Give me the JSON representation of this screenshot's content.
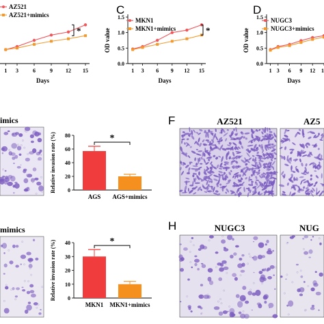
{
  "panels": {
    "C": "C",
    "D": "D",
    "F": "F",
    "H": "H"
  },
  "micrograph_titles": {
    "F_left": "AZ521",
    "F_right": "AZ5",
    "H_left": "NUGC3",
    "H_right": "NUG"
  },
  "left_fragments": {
    "top": "imics",
    "bottom": "mimics"
  },
  "colors": {
    "control": "#f0555a",
    "mimics": "#f29a2e",
    "bar_control": "#f03c3c",
    "bar_mimics": "#f5901e",
    "stain": "#7a5bbf",
    "stain_bg": "#e6e1f0"
  },
  "chart_data": [
    {
      "type": "line",
      "panel": "",
      "x": [
        1,
        3,
        6,
        9,
        12,
        15
      ],
      "xlabel": "Days",
      "ylabel": "",
      "series": [
        {
          "name": "AZ521",
          "values": [
            0.45,
            0.55,
            0.75,
            0.92,
            1.02,
            1.25
          ]
        },
        {
          "name": "AZ521+mimics",
          "values": [
            0.45,
            0.5,
            0.62,
            0.72,
            0.8,
            0.9
          ]
        }
      ],
      "annotation": "*"
    },
    {
      "type": "line",
      "panel": "C",
      "x": [
        1,
        3,
        6,
        9,
        12,
        15
      ],
      "xlabel": "Days",
      "ylabel": "OD value",
      "ylim": [
        0.0,
        1.5
      ],
      "yticks": [
        "0.0",
        "0.5",
        "1.0",
        "1.5"
      ],
      "series": [
        {
          "name": "MKN1",
          "values": [
            0.47,
            0.55,
            0.75,
            1.0,
            1.08,
            1.25
          ]
        },
        {
          "name": "MKN1+mimics",
          "values": [
            0.45,
            0.52,
            0.62,
            0.72,
            0.8,
            0.92
          ]
        }
      ],
      "annotation": "*"
    },
    {
      "type": "line",
      "panel": "D",
      "x": [
        1,
        3,
        6,
        9,
        12,
        15
      ],
      "xlabel": "Days",
      "ylabel": "OD value",
      "ylim": [
        0.0,
        1.5
      ],
      "yticks": [
        "0.0",
        "0.5",
        "1.0",
        "1.5"
      ],
      "series": [
        {
          "name": "NUGC3",
          "values": [
            0.45,
            0.55,
            0.62,
            0.74,
            0.84,
            0.9
          ]
        },
        {
          "name": "NUGC3+mimics",
          "values": [
            0.43,
            0.52,
            0.58,
            0.68,
            0.78,
            0.85
          ]
        }
      ]
    },
    {
      "type": "bar",
      "panel": "",
      "categories": [
        "AGS",
        "AGS+mimics"
      ],
      "values": [
        57,
        20
      ],
      "errors": [
        7,
        3
      ],
      "ylabel": "Relative invasion rate (%)",
      "ylim": [
        0,
        80
      ],
      "yticks": [
        "0",
        "20",
        "40",
        "60",
        "80"
      ],
      "annotation": "*"
    },
    {
      "type": "bar",
      "panel": "",
      "categories": [
        "MKN1",
        "MKN1+mimics"
      ],
      "values": [
        30,
        10
      ],
      "errors": [
        5,
        2
      ],
      "ylabel": "Relative invasion rate (%)",
      "ylim": [
        0,
        40
      ],
      "yticks": [
        "0",
        "10",
        "20",
        "30",
        "40"
      ],
      "annotation": "*"
    }
  ]
}
